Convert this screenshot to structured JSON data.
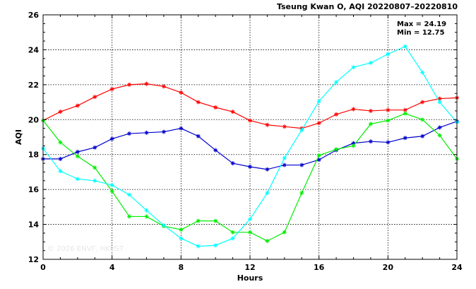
{
  "chart_data": {
    "type": "line",
    "title": "Tseung Kwan O, AQI 20220807–20220810",
    "xlabel": "Hours",
    "ylabel": "AQI",
    "xlim": [
      0,
      24
    ],
    "ylim": [
      12,
      26
    ],
    "xticks": [
      0,
      4,
      8,
      12,
      16,
      20,
      24
    ],
    "yticks": [
      12,
      14,
      16,
      18,
      20,
      22,
      24,
      26
    ],
    "grid": true,
    "annotations": {
      "max": "Max = 24.19",
      "min": "Min = 12.75"
    },
    "watermark": "© 2026  ENVF, HKUST",
    "x": [
      0,
      1,
      2,
      3,
      4,
      5,
      6,
      7,
      8,
      9,
      10,
      11,
      12,
      13,
      14,
      15,
      16,
      17,
      18,
      19,
      20,
      21,
      22,
      23,
      24
    ],
    "series": [
      {
        "color": "#ff0000",
        "values": [
          19.95,
          20.45,
          20.8,
          21.3,
          21.75,
          22.0,
          22.05,
          21.9,
          21.55,
          21.0,
          20.7,
          20.45,
          19.95,
          19.7,
          19.6,
          19.5,
          19.8,
          20.3,
          20.6,
          20.5,
          20.55,
          20.55,
          21.0,
          21.2,
          21.25
        ]
      },
      {
        "color": "#0000cc",
        "values": [
          17.75,
          17.75,
          18.15,
          18.4,
          18.9,
          19.2,
          19.25,
          19.3,
          19.5,
          19.05,
          18.25,
          17.5,
          17.3,
          17.15,
          17.4,
          17.4,
          17.7,
          18.25,
          18.65,
          18.75,
          18.7,
          18.95,
          19.05,
          19.55,
          19.9
        ]
      },
      {
        "color": "#00ee00",
        "values": [
          19.95,
          18.7,
          17.9,
          17.25,
          15.9,
          14.45,
          14.45,
          13.9,
          13.7,
          14.2,
          14.2,
          13.55,
          13.55,
          13.05,
          13.55,
          15.8,
          17.95,
          18.3,
          18.5,
          19.75,
          19.95,
          20.35,
          20.0,
          19.1,
          17.75
        ]
      },
      {
        "color": "#00ffff",
        "values": [
          18.35,
          17.05,
          16.6,
          16.5,
          16.25,
          15.7,
          14.8,
          13.95,
          13.2,
          12.75,
          12.8,
          13.2,
          14.3,
          15.8,
          17.8,
          19.4,
          21.05,
          22.15,
          23.0,
          23.25,
          23.75,
          24.19,
          22.7,
          21.0,
          19.85
        ]
      }
    ]
  }
}
